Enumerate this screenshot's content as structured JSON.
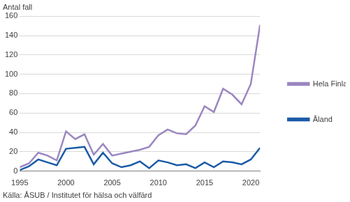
{
  "chart_data": {
    "type": "line",
    "y_label": "Antal fall",
    "source": "Källa: ÅSUB / Institutet för hälsa och välfärd",
    "x": [
      1995,
      1996,
      1997,
      1998,
      1999,
      2000,
      2001,
      2002,
      2003,
      2004,
      2005,
      2006,
      2007,
      2008,
      2009,
      2010,
      2011,
      2012,
      2013,
      2014,
      2015,
      2016,
      2017,
      2018,
      2019,
      2020,
      2021
    ],
    "series": [
      {
        "name": "Hela Finland",
        "color": "#9b87c1",
        "values": [
          4,
          8,
          19,
          16,
          11,
          41,
          33,
          38,
          17,
          28,
          16,
          18,
          20,
          22,
          25,
          37,
          43,
          39,
          38,
          47,
          67,
          61,
          85,
          79,
          69,
          90,
          151
        ]
      },
      {
        "name": "Åland",
        "color": "#1a5ba6",
        "values": [
          1,
          5,
          12,
          9,
          6,
          23,
          24,
          25,
          7,
          19,
          8,
          4,
          6,
          10,
          3,
          11,
          9,
          6,
          7,
          3,
          9,
          4,
          10,
          9,
          7,
          12,
          24
        ]
      }
    ],
    "xlim": [
      1995,
      2021
    ],
    "xticks": [
      1995,
      2000,
      2005,
      2010,
      2015,
      2020
    ],
    "ylim": [
      0,
      160
    ],
    "yticks": [
      0,
      20,
      40,
      60,
      80,
      100,
      120,
      140,
      160
    ],
    "grid": true,
    "legend": "right"
  }
}
